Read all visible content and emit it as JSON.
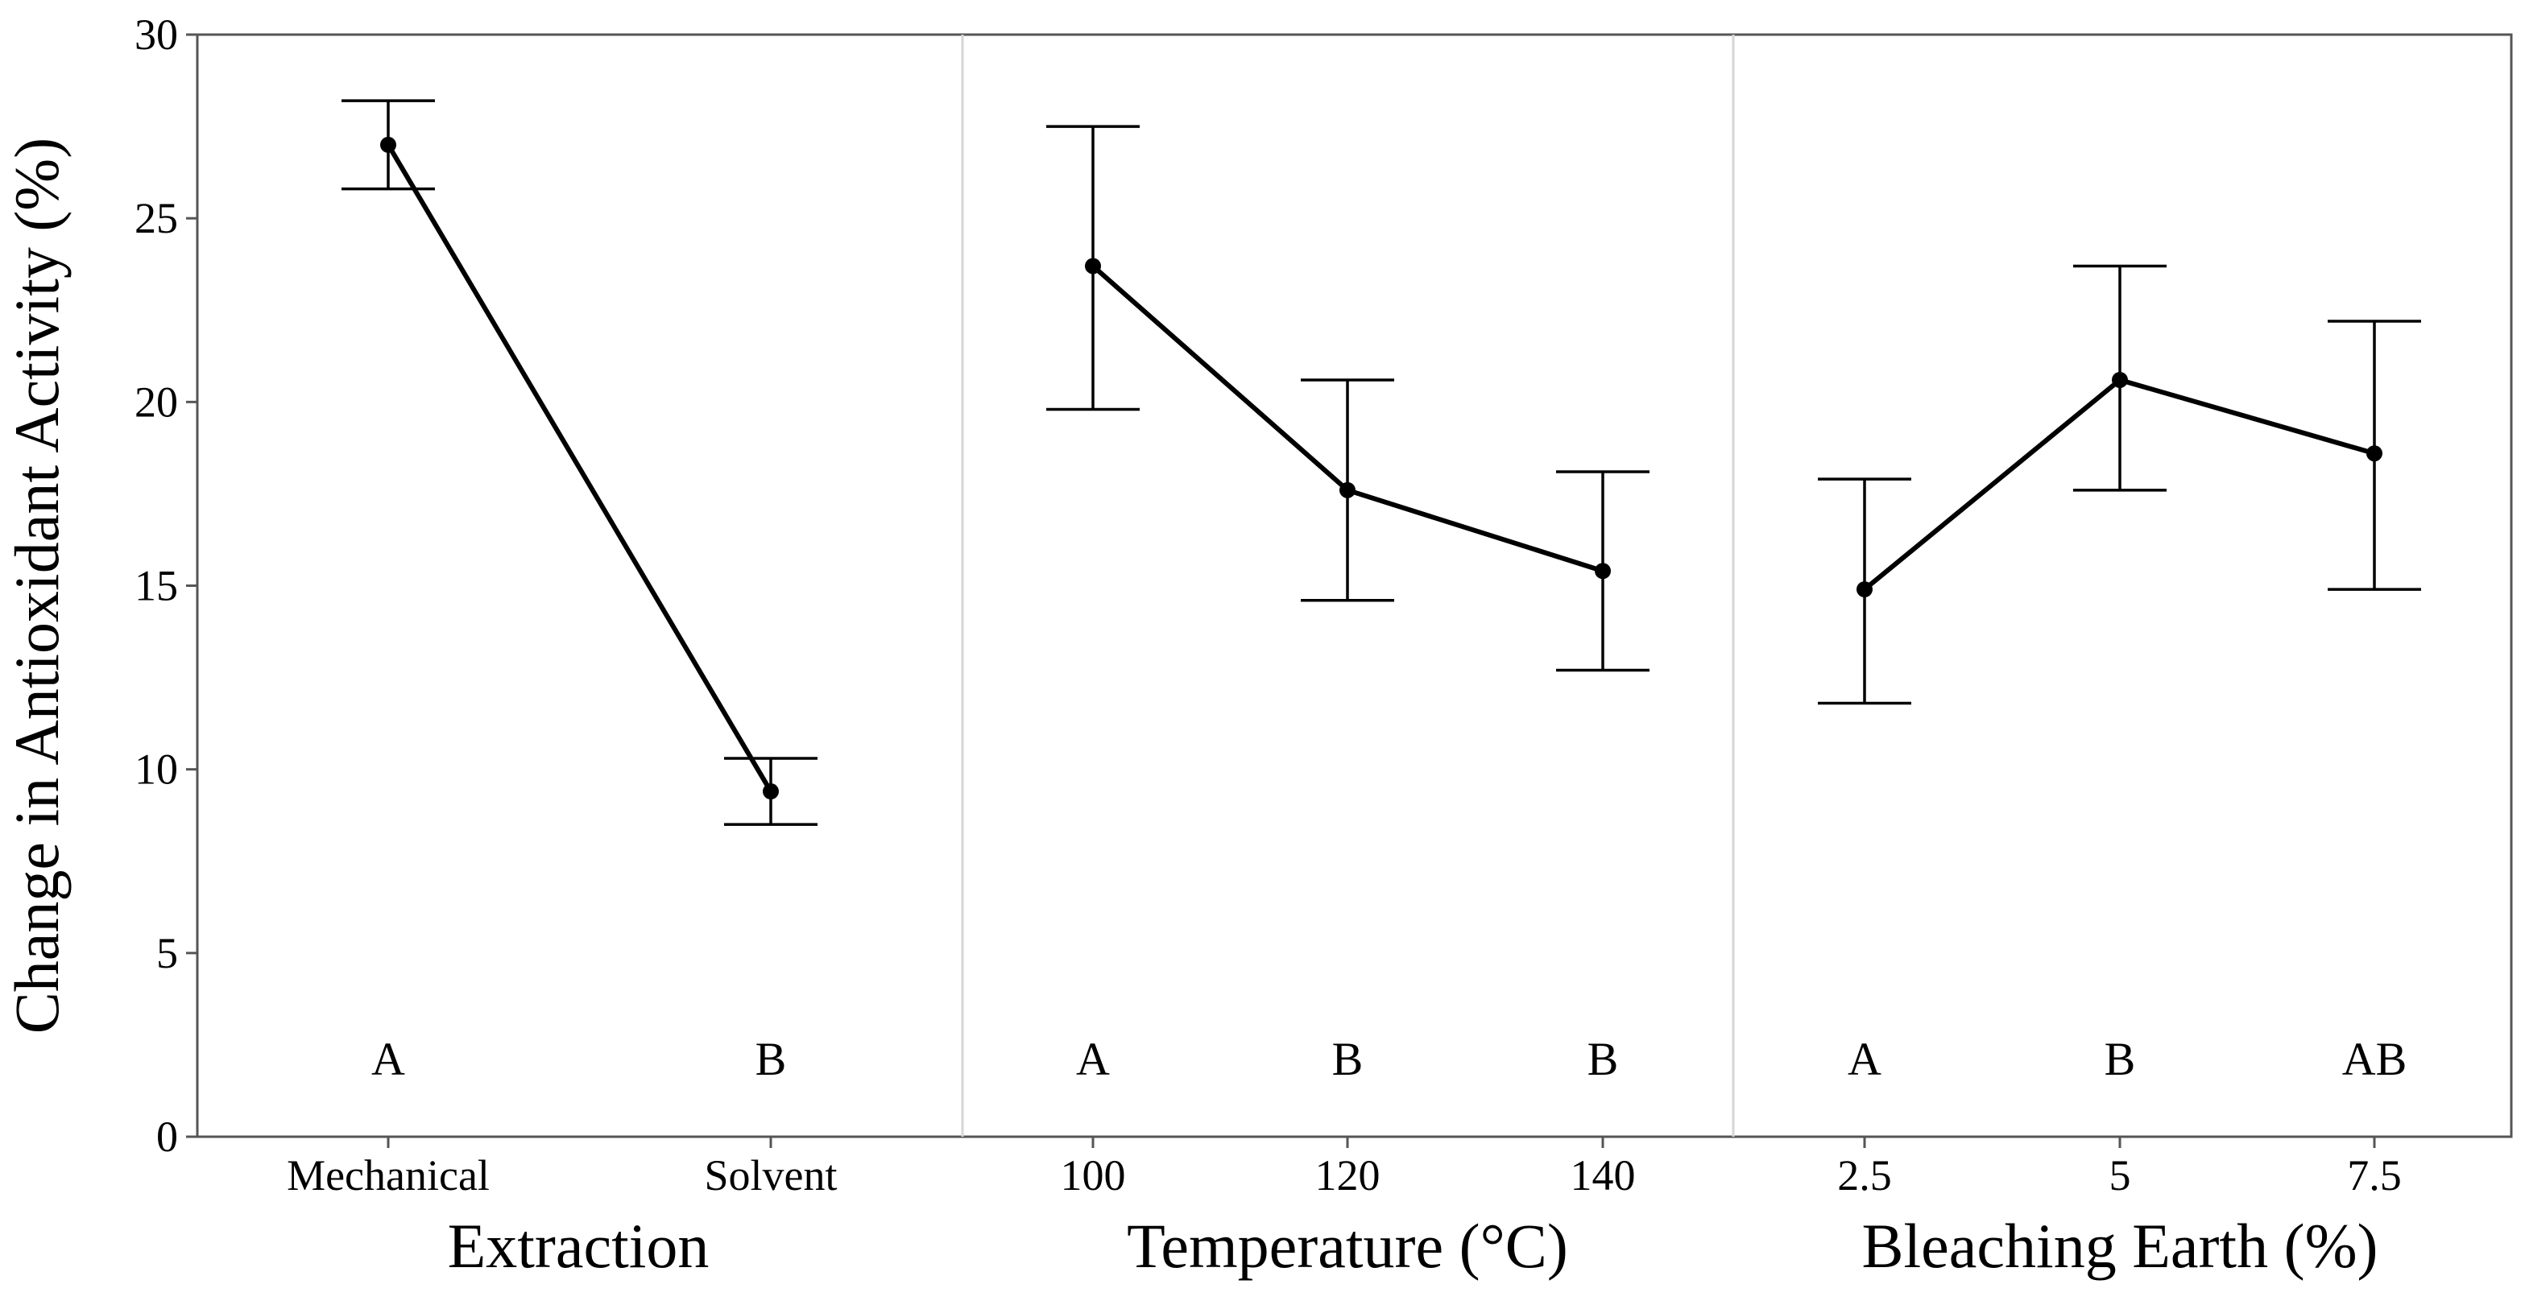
{
  "chart_data": {
    "type": "line",
    "ylabel": "Change in Antioxidant Activity (%)",
    "ylim": [
      0,
      30
    ],
    "yticks": [
      0,
      5,
      10,
      15,
      20,
      25,
      30
    ],
    "grid": false,
    "panels": [
      {
        "title": "Extraction",
        "categories": [
          "Mechanical",
          "Solvent"
        ],
        "values": [
          27.0,
          9.4
        ],
        "error_low": [
          25.8,
          8.5
        ],
        "error_high": [
          28.2,
          10.3
        ],
        "letters": [
          "A",
          "B"
        ]
      },
      {
        "title": "Temperature (°C)",
        "categories": [
          "100",
          "120",
          "140"
        ],
        "values": [
          23.7,
          17.6,
          15.4
        ],
        "error_low": [
          19.8,
          14.6,
          12.7
        ],
        "error_high": [
          27.5,
          20.6,
          18.1
        ],
        "letters": [
          "A",
          "B",
          "B"
        ]
      },
      {
        "title": "Bleaching Earth (%)",
        "categories": [
          "2.5",
          "5",
          "7.5"
        ],
        "values": [
          14.9,
          20.6,
          18.6
        ],
        "error_low": [
          11.8,
          17.6,
          14.9
        ],
        "error_high": [
          17.9,
          23.7,
          22.2
        ],
        "letters": [
          "A",
          "B",
          "AB"
        ]
      }
    ]
  }
}
